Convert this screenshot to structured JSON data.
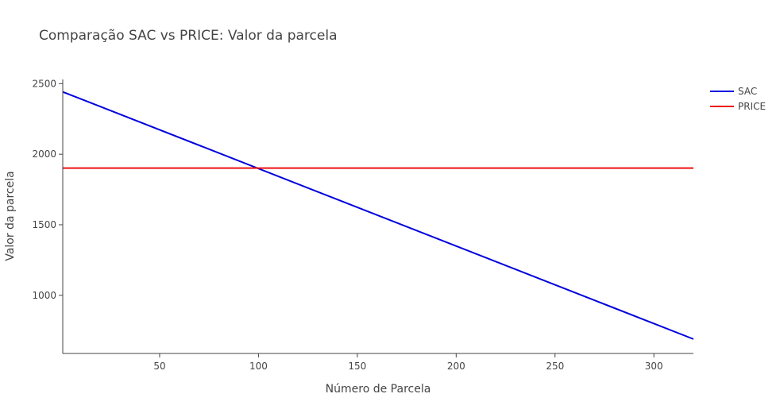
{
  "chart_data": {
    "type": "line",
    "title": "Comparação SAC vs PRICE: Valor da parcela",
    "xlabel": "Número de Parcela",
    "ylabel": "Valor da parcela",
    "xlim": [
      1,
      320
    ],
    "ylim": [
      588,
      2530
    ],
    "x_ticks": [
      50,
      100,
      150,
      200,
      250,
      300
    ],
    "y_ticks": [
      1000,
      1500,
      2000,
      2500
    ],
    "grid": false,
    "legend_position": "top-right",
    "series": [
      {
        "name": "SAC",
        "color": "#0000dd",
        "x": [
          1,
          320
        ],
        "y": [
          2442,
          690
        ]
      },
      {
        "name": "PRICE",
        "color": "#ee1111",
        "x": [
          1,
          320
        ],
        "y": [
          1902,
          1902
        ]
      }
    ]
  }
}
